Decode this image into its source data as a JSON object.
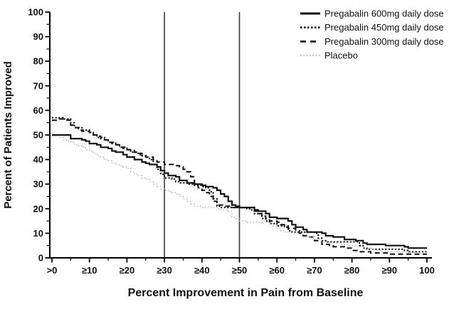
{
  "chart_data": {
    "type": "line",
    "subtype": "step-response-curves",
    "title": "",
    "xlabel": "Percent Improvement in Pain from Baseline",
    "ylabel": "Percent of Patients Improved",
    "xlim": [
      0,
      100
    ],
    "ylim": [
      0,
      100
    ],
    "grid": false,
    "legend_position": "top-right",
    "x_tick_values": [
      0,
      10,
      20,
      30,
      40,
      50,
      60,
      70,
      80,
      90,
      100
    ],
    "x_tick_labels": [
      ">0",
      "≥10",
      "≥20",
      "≥30",
      "≥40",
      "≥50",
      "≥60",
      "≥70",
      "≥80",
      "≥90",
      "100"
    ],
    "y_ticks": [
      0,
      10,
      20,
      30,
      40,
      50,
      60,
      70,
      80,
      90,
      100
    ],
    "minor_tick_step": 5,
    "reference_lines_x": [
      30,
      50
    ],
    "colors": {
      "pregabalin_lines": "#111111",
      "placebo_line": "#b4b4b4",
      "reference_line": "#3a3a3a",
      "axis": "#000000",
      "background": "#ffffff"
    },
    "series": [
      {
        "name": "Pregabalin 600mg daily dose",
        "style": "solid",
        "points": [
          [
            0,
            50
          ],
          [
            4,
            50
          ],
          [
            5,
            48.5
          ],
          [
            8,
            48
          ],
          [
            9,
            47.5
          ],
          [
            10,
            46.5
          ],
          [
            12,
            46
          ],
          [
            13,
            45
          ],
          [
            15,
            44.5
          ],
          [
            16,
            43.5
          ],
          [
            17,
            43
          ],
          [
            19,
            42
          ],
          [
            20,
            41
          ],
          [
            22,
            40
          ],
          [
            24,
            39
          ],
          [
            25,
            38.5
          ],
          [
            26,
            38
          ],
          [
            28,
            37
          ],
          [
            29,
            35.5
          ],
          [
            30,
            34.5
          ],
          [
            31,
            33.5
          ],
          [
            33,
            33
          ],
          [
            34,
            31.5
          ],
          [
            36,
            30.5
          ],
          [
            38,
            30
          ],
          [
            40,
            29.5
          ],
          [
            41,
            29
          ],
          [
            43,
            28.5
          ],
          [
            44,
            27.5
          ],
          [
            45,
            26
          ],
          [
            46,
            25
          ],
          [
            47,
            23
          ],
          [
            48,
            21.5
          ],
          [
            49,
            21
          ],
          [
            50,
            20.5
          ],
          [
            53,
            20.5
          ],
          [
            54,
            19.5
          ],
          [
            55,
            19
          ],
          [
            57,
            18
          ],
          [
            58,
            16.5
          ],
          [
            60,
            16
          ],
          [
            63,
            15
          ],
          [
            64,
            13.5
          ],
          [
            65,
            12.5
          ],
          [
            67,
            11.5
          ],
          [
            68,
            10.5
          ],
          [
            72,
            10
          ],
          [
            73,
            9
          ],
          [
            75,
            8.5
          ],
          [
            78,
            7.5
          ],
          [
            81,
            7
          ],
          [
            83,
            6
          ],
          [
            84,
            5.5
          ],
          [
            88,
            5.5
          ],
          [
            89,
            5
          ],
          [
            94,
            4.5
          ],
          [
            95,
            4
          ],
          [
            100,
            4
          ]
        ]
      },
      {
        "name": "Pregabalin 450mg daily dose",
        "style": "dotted-bold",
        "points": [
          [
            0,
            57
          ],
          [
            3,
            56.5
          ],
          [
            5,
            55
          ],
          [
            6,
            53
          ],
          [
            8,
            52
          ],
          [
            10,
            51
          ],
          [
            11,
            50
          ],
          [
            12,
            49
          ],
          [
            14,
            48
          ],
          [
            15,
            47
          ],
          [
            17,
            46
          ],
          [
            18,
            45
          ],
          [
            20,
            44
          ],
          [
            21,
            43
          ],
          [
            23,
            42
          ],
          [
            24,
            41.5
          ],
          [
            25,
            41
          ],
          [
            26,
            40
          ],
          [
            27,
            38
          ],
          [
            28,
            36
          ],
          [
            29,
            34
          ],
          [
            30,
            32.5
          ],
          [
            32,
            32
          ],
          [
            33,
            31
          ],
          [
            34,
            30.5
          ],
          [
            36,
            30
          ],
          [
            38,
            29.5
          ],
          [
            40,
            29
          ],
          [
            41,
            28.5
          ],
          [
            42,
            27
          ],
          [
            43,
            24
          ],
          [
            44,
            21
          ],
          [
            45,
            20.5
          ],
          [
            52,
            20
          ],
          [
            53,
            19.5
          ],
          [
            54,
            18
          ],
          [
            56,
            16
          ],
          [
            57,
            15
          ],
          [
            58,
            14
          ],
          [
            60,
            13
          ],
          [
            62,
            12.5
          ],
          [
            63,
            11
          ],
          [
            64,
            10.5
          ],
          [
            70,
            10
          ],
          [
            71,
            8
          ],
          [
            72,
            7
          ],
          [
            73,
            6.5
          ],
          [
            81,
            6.5
          ],
          [
            82,
            5
          ],
          [
            83,
            4
          ],
          [
            84,
            3.5
          ],
          [
            93,
            3.5
          ],
          [
            94,
            3
          ],
          [
            95,
            2.5
          ],
          [
            100,
            2.5
          ]
        ]
      },
      {
        "name": "Pregabalin 300mg daily dose",
        "style": "dashed",
        "points": [
          [
            0,
            56
          ],
          [
            2,
            56.5
          ],
          [
            4,
            56
          ],
          [
            5,
            54
          ],
          [
            6,
            53
          ],
          [
            7,
            52
          ],
          [
            8,
            51.5
          ],
          [
            10,
            51
          ],
          [
            11,
            50
          ],
          [
            12,
            49.5
          ],
          [
            13,
            48.5
          ],
          [
            14,
            48
          ],
          [
            15,
            47
          ],
          [
            16,
            46.5
          ],
          [
            17,
            46
          ],
          [
            18,
            45
          ],
          [
            19,
            44.5
          ],
          [
            20,
            44
          ],
          [
            22,
            43
          ],
          [
            23,
            42.5
          ],
          [
            24,
            42
          ],
          [
            25,
            41
          ],
          [
            27,
            40
          ],
          [
            28,
            39
          ],
          [
            30,
            38
          ],
          [
            33,
            37.5
          ],
          [
            34,
            37
          ],
          [
            35,
            36
          ],
          [
            36,
            35
          ],
          [
            37,
            33
          ],
          [
            38,
            30
          ],
          [
            39,
            28.5
          ],
          [
            40,
            27.5
          ],
          [
            41,
            26.5
          ],
          [
            42,
            25
          ],
          [
            43,
            23
          ],
          [
            44,
            21.5
          ],
          [
            46,
            21
          ],
          [
            48,
            20.5
          ],
          [
            53,
            20.5
          ],
          [
            54,
            19
          ],
          [
            55,
            18
          ],
          [
            56,
            17
          ],
          [
            57,
            16
          ],
          [
            58,
            15
          ],
          [
            60,
            14.5
          ],
          [
            61,
            13.5
          ],
          [
            62,
            13
          ],
          [
            63,
            12
          ],
          [
            65,
            11
          ],
          [
            66,
            10
          ],
          [
            67,
            9
          ],
          [
            68,
            8.5
          ],
          [
            70,
            7
          ],
          [
            72,
            5.5
          ],
          [
            74,
            5
          ],
          [
            75,
            4.5
          ],
          [
            78,
            4
          ],
          [
            80,
            3
          ],
          [
            82,
            2.5
          ],
          [
            85,
            2
          ],
          [
            90,
            1.5
          ],
          [
            100,
            1.5
          ]
        ]
      },
      {
        "name": "Placebo",
        "style": "dotted-light",
        "points": [
          [
            0,
            49.5
          ],
          [
            2,
            49
          ],
          [
            3,
            48
          ],
          [
            4,
            47.5
          ],
          [
            5,
            47
          ],
          [
            6,
            46
          ],
          [
            7,
            45.5
          ],
          [
            8,
            45
          ],
          [
            9,
            44
          ],
          [
            10,
            43.5
          ],
          [
            11,
            42.5
          ],
          [
            12,
            41.5
          ],
          [
            13,
            41
          ],
          [
            14,
            40
          ],
          [
            15,
            39.5
          ],
          [
            16,
            38.5
          ],
          [
            17,
            38
          ],
          [
            18,
            37.5
          ],
          [
            19,
            37
          ],
          [
            20,
            36.5
          ],
          [
            21,
            35
          ],
          [
            22,
            34
          ],
          [
            23,
            33.5
          ],
          [
            24,
            32.5
          ],
          [
            25,
            32
          ],
          [
            26,
            31
          ],
          [
            27,
            30
          ],
          [
            28,
            29
          ],
          [
            29,
            28
          ],
          [
            30,
            27.5
          ],
          [
            31,
            27
          ],
          [
            32,
            26.5
          ],
          [
            33,
            26
          ],
          [
            34,
            25
          ],
          [
            35,
            24
          ],
          [
            36,
            23
          ],
          [
            37,
            22
          ],
          [
            38,
            21
          ],
          [
            40,
            20.5
          ],
          [
            44,
            20
          ],
          [
            45,
            19.5
          ],
          [
            47,
            19
          ],
          [
            48,
            16.5
          ],
          [
            49,
            16
          ],
          [
            50,
            15
          ],
          [
            52,
            14.5
          ],
          [
            58,
            14
          ],
          [
            59,
            13
          ],
          [
            60,
            12
          ],
          [
            61,
            11
          ],
          [
            62,
            10.5
          ],
          [
            66,
            10.5
          ],
          [
            67,
            9.5
          ],
          [
            68,
            8.5
          ],
          [
            70,
            7.5
          ],
          [
            72,
            7
          ],
          [
            73,
            6.5
          ],
          [
            75,
            6
          ],
          [
            77,
            5.5
          ],
          [
            79,
            5
          ],
          [
            81,
            4.5
          ],
          [
            83,
            4
          ],
          [
            85,
            3.5
          ],
          [
            86,
            3
          ],
          [
            88,
            2.5
          ],
          [
            93,
            2.5
          ],
          [
            95,
            2.2
          ],
          [
            100,
            2
          ]
        ]
      }
    ]
  }
}
